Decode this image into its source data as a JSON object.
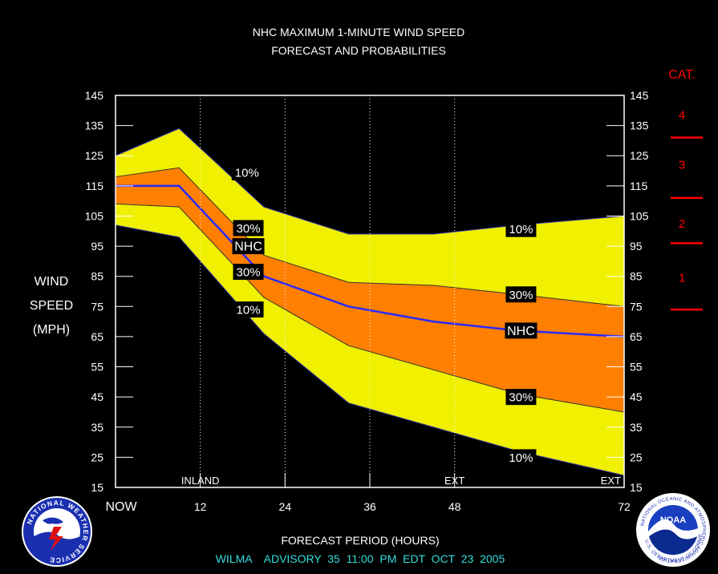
{
  "colors": {
    "background": "#000000",
    "outer_band": "#f0f000",
    "inner_band": "#ff7f00",
    "forecast_line": "#2a2aff",
    "text": "#ffffff",
    "category": "#ff0000",
    "footer": "#33dddd",
    "frame": "#ffffff"
  },
  "chart_data": {
    "type": "area",
    "title": "NHC MAXIMUM 1-MINUTE WIND SPEED",
    "subtitle": "FORECAST AND PROBABILITIES",
    "xlabel": "FORECAST PERIOD (HOURS)",
    "ylabel": [
      "WIND",
      "SPEED",
      "(MPH)"
    ],
    "xlim": [
      0,
      72
    ],
    "ylim": [
      15,
      145
    ],
    "x_ticks": [
      {
        "x": 0,
        "label": "NOW"
      },
      {
        "x": 12,
        "label": "12"
      },
      {
        "x": 24,
        "label": "24"
      },
      {
        "x": 36,
        "label": "36"
      },
      {
        "x": 48,
        "label": "48"
      },
      {
        "x": 72,
        "label": "72"
      }
    ],
    "y_ticks": [
      15,
      25,
      35,
      45,
      55,
      65,
      75,
      85,
      95,
      105,
      115,
      125,
      135,
      145
    ],
    "period_markers": [
      {
        "x": 12,
        "label": "INLAND"
      },
      {
        "x": 48,
        "label": "EXT"
      },
      {
        "x": 72,
        "label": "EXT"
      }
    ],
    "x": [
      0,
      9,
      21,
      33,
      45,
      57,
      72
    ],
    "series": [
      {
        "name": "10%",
        "role": "upper",
        "values": [
          125,
          134,
          108,
          99,
          99,
          102,
          105
        ]
      },
      {
        "name": "30%",
        "role": "upper",
        "values": [
          118,
          121,
          92,
          83,
          82,
          79,
          75
        ]
      },
      {
        "name": "NHC",
        "role": "forecast",
        "values": [
          115,
          115,
          85,
          75,
          70,
          67,
          65
        ]
      },
      {
        "name": "30%",
        "role": "lower",
        "values": [
          109,
          108,
          78,
          62,
          54,
          46,
          40
        ]
      },
      {
        "name": "10%",
        "role": "lower",
        "values": [
          102,
          98,
          66,
          43,
          35,
          27,
          19
        ]
      }
    ],
    "annotations": [
      {
        "text": "10%",
        "x": 18.6,
        "y": 119.5
      },
      {
        "text": "30%",
        "x": 18.8,
        "y": 101
      },
      {
        "text": "NHC",
        "x": 18.8,
        "y": 95
      },
      {
        "text": "30%",
        "x": 18.8,
        "y": 86.5
      },
      {
        "text": "10%",
        "x": 18.8,
        "y": 74
      },
      {
        "text": "10%",
        "x": 57.4,
        "y": 100.7
      },
      {
        "text": "30%",
        "x": 57.4,
        "y": 79
      },
      {
        "text": "NHC",
        "x": 57.4,
        "y": 67
      },
      {
        "text": "30%",
        "x": 57.4,
        "y": 45
      },
      {
        "text": "10%",
        "x": 57.4,
        "y": 25
      }
    ],
    "categories": {
      "header": "CAT.",
      "thresholds": [
        74,
        96,
        111,
        131
      ],
      "labels": [
        {
          "label": "4",
          "y": 138.5
        },
        {
          "label": "3",
          "y": 122
        },
        {
          "label": "2",
          "y": 102.5
        },
        {
          "label": "1",
          "y": 84.5
        }
      ]
    }
  },
  "footer": {
    "advisory": "WILMA    ADVISORY  35  11:00  PM  EDT  OCT  23  2005"
  },
  "logos": {
    "left": "NATIONAL WEATHER SERVICE",
    "right": "NOAA",
    "right_ring": "NATIONAL OCEANIC AND ATMOSPHERIC ADMINISTRATION",
    "right_ring_bottom": "U.S. DEPARTMENT OF COMMERCE"
  }
}
